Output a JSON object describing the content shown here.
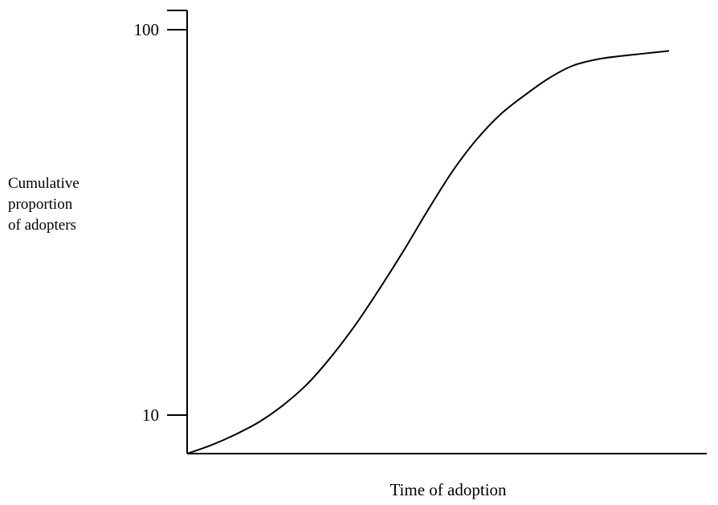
{
  "chart_data": {
    "type": "line",
    "title": "",
    "xlabel": "Time of adoption",
    "ylabel_lines": [
      "Cumulative",
      "proportion",
      "of adopters"
    ],
    "y_ticks": [
      {
        "value": 10,
        "label": "10"
      },
      {
        "value": 100,
        "label": "100"
      }
    ],
    "grid": false,
    "legend": "none",
    "x": [
      0.0,
      0.05,
      0.1,
      0.15,
      0.2,
      0.25,
      0.3,
      0.35,
      0.4,
      0.45,
      0.5,
      0.55,
      0.6,
      0.65,
      0.7,
      0.75,
      0.8,
      0.85,
      0.9,
      0.95,
      1.0
    ],
    "series": [
      {
        "values": [
          0,
          2,
          4.5,
          7.5,
          11.5,
          16.5,
          23,
          30.5,
          39,
          48,
          57.5,
          66.5,
          74,
          80,
          84.5,
          88.5,
          91.5,
          93,
          93.8,
          94.4,
          95
        ],
        "color": "#000000"
      }
    ]
  }
}
